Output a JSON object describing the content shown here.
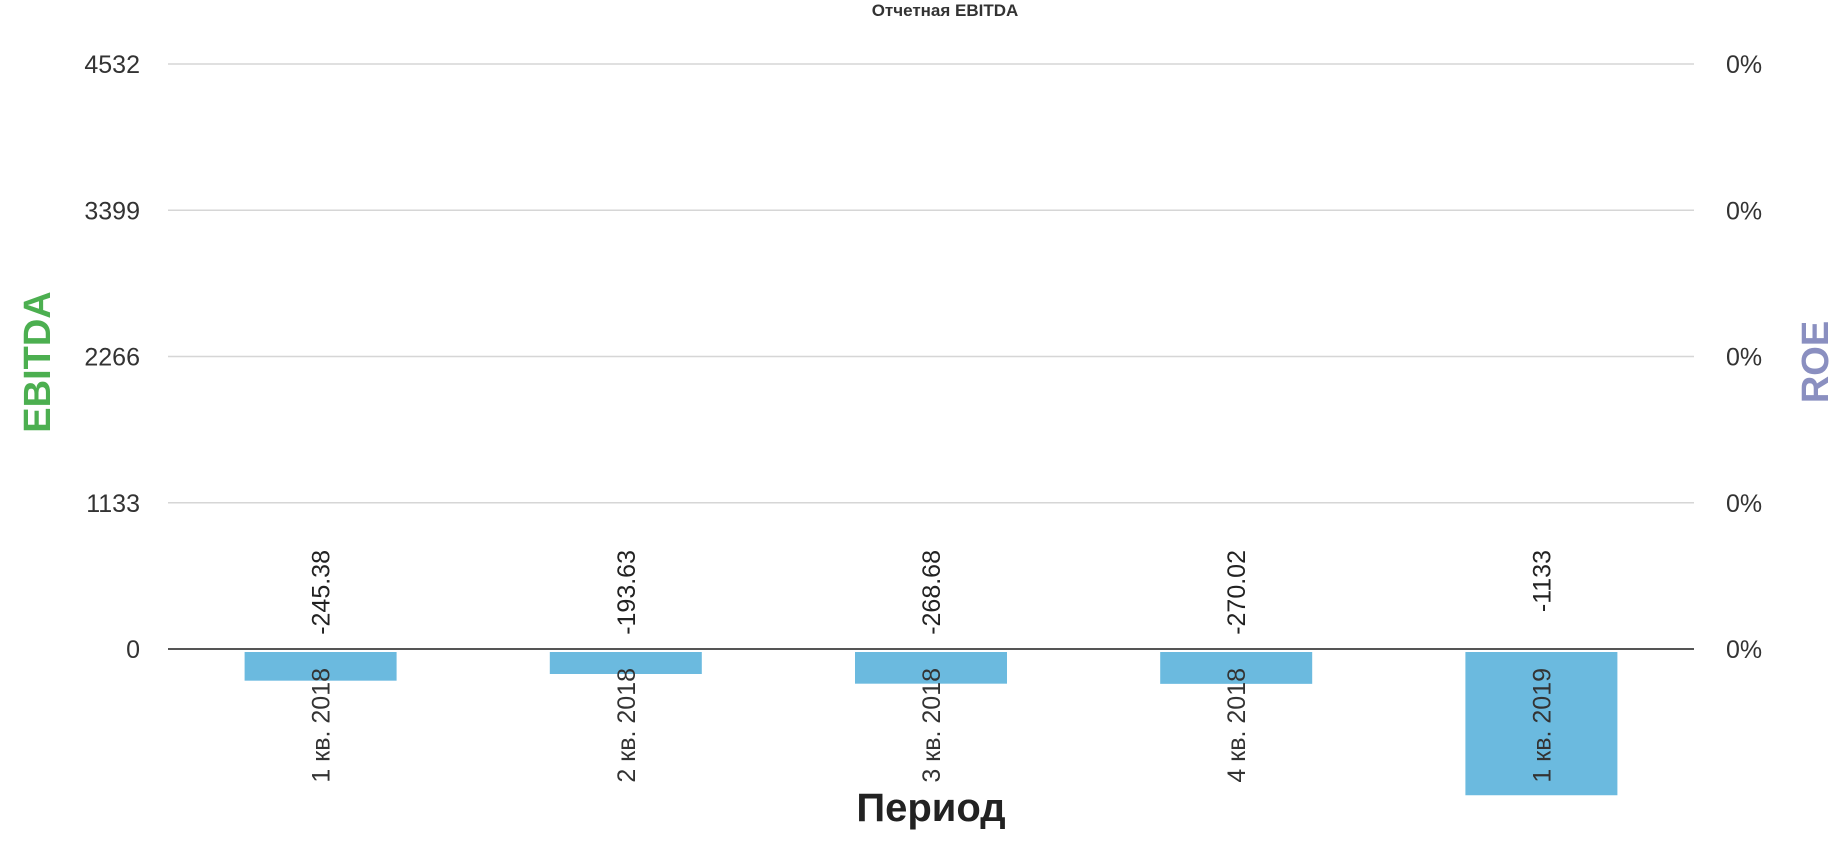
{
  "chart_data": {
    "type": "bar",
    "title": "Отчетная EBITDA",
    "xlabel": "Период",
    "ylabel": "EBITDA",
    "ylabel_right": "ROE",
    "categories": [
      "1 кв. 2018",
      "2 кв. 2018",
      "3 кв. 2018",
      "4 кв. 2018",
      "1 кв. 2019"
    ],
    "series": [
      {
        "values": [
          -245.38,
          -193.63,
          -268.68,
          -270.02,
          -1133
        ],
        "color": "#6bbadf"
      }
    ],
    "data_labels": [
      "-245.38",
      "-193.63",
      "-268.68",
      "-270.02",
      "-1133"
    ],
    "yticks": [
      0,
      1133,
      2266,
      3399,
      4532
    ],
    "ytick_labels": [
      "0",
      "1133",
      "2266",
      "3399",
      "4532"
    ],
    "ytick_labels_right": [
      "0%",
      "0%",
      "0%",
      "0%",
      "0%"
    ],
    "ylim": [
      -1133,
      4532
    ],
    "grid": true,
    "legend": "none",
    "colors": {
      "ylabel": "#4caf50",
      "ylabel_right": "#8a8fc0",
      "bar": "#6bbadf"
    }
  }
}
